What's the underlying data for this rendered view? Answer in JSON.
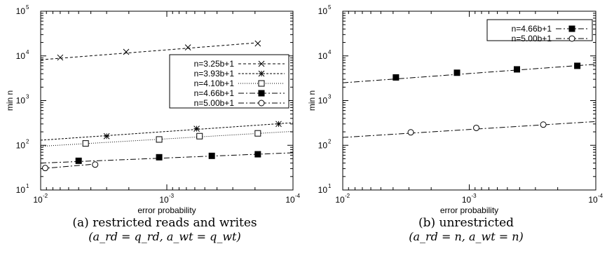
{
  "chart_data": [
    {
      "type": "line",
      "xlabel": "error probability",
      "ylabel": "min n",
      "xscale": "log",
      "yscale": "log",
      "xreversed": true,
      "xlim": [
        0.01,
        0.0001
      ],
      "ylim": [
        10,
        100000
      ],
      "xticks": [
        {
          "base": "10",
          "exp": "-2"
        },
        {
          "base": "10",
          "exp": "-3"
        },
        {
          "base": "10",
          "exp": "-4"
        }
      ],
      "yticks": [
        {
          "base": "10",
          "exp": "1"
        },
        {
          "base": "10",
          "exp": "2"
        },
        {
          "base": "10",
          "exp": "3"
        },
        {
          "base": "10",
          "exp": "4"
        },
        {
          "base": "10",
          "exp": "5"
        }
      ],
      "legend_position": "right",
      "caption_line1": "(a) restricted reads and writes",
      "caption_line2": "(a_rd = q_rd, a_wt = q_wt)",
      "series": [
        {
          "name": "n=3.25b+1",
          "marker": "x",
          "dash": "4,3",
          "line": {
            "x": [
              0.01,
              0.0002
            ],
            "y": [
              8200,
              19500
            ]
          },
          "points": {
            "x": [
              0.007,
              0.0021,
              0.00068,
              0.00019
            ],
            "y": [
              9200,
              12300,
              15500,
              19000
            ]
          }
        },
        {
          "name": "n=3.93b+1",
          "marker": "star",
          "dash": "3,2",
          "line": {
            "x": [
              0.01,
              0.0001
            ],
            "y": [
              130,
              320
            ]
          },
          "points": {
            "x": [
              0.003,
              0.00058,
              0.00013
            ],
            "y": [
              160,
              235,
              300
            ]
          }
        },
        {
          "name": "n=4.10b+1",
          "marker": "square-open",
          "dash": "1,2",
          "line": {
            "x": [
              0.01,
              0.0001
            ],
            "y": [
              95,
              205
            ]
          },
          "points": {
            "x": [
              0.0044,
              0.00115,
              0.00055,
              0.00019
            ],
            "y": [
              110,
              135,
              160,
              185
            ]
          }
        },
        {
          "name": "n=4.66b+1",
          "marker": "square-filled",
          "dash": "8,3,2,3",
          "line": {
            "x": [
              0.01,
              0.0001
            ],
            "y": [
              40,
              68
            ]
          },
          "points": {
            "x": [
              0.005,
              0.00115,
              0.00044,
              0.00019
            ],
            "y": [
              45,
              54,
              58,
              63
            ]
          }
        },
        {
          "name": "n=5.00b+1",
          "marker": "circle-open",
          "dash": "8,3,2,3",
          "line": {
            "x": [
              0.01,
              0.0037
            ],
            "y": [
              30,
              38
            ]
          },
          "points": {
            "x": [
              0.0092,
              0.0037
            ],
            "y": [
              31,
              37
            ]
          }
        }
      ]
    },
    {
      "type": "line",
      "xlabel": "error probability",
      "ylabel": "min n",
      "xscale": "log",
      "yscale": "log",
      "xreversed": true,
      "xlim": [
        0.01,
        0.0001
      ],
      "ylim": [
        10,
        100000
      ],
      "xticks": [
        {
          "base": "10",
          "exp": "-2"
        },
        {
          "base": "10",
          "exp": "-3"
        },
        {
          "base": "10",
          "exp": "-4"
        }
      ],
      "yticks": [
        {
          "base": "10",
          "exp": "1"
        },
        {
          "base": "10",
          "exp": "2"
        },
        {
          "base": "10",
          "exp": "3"
        },
        {
          "base": "10",
          "exp": "4"
        },
        {
          "base": "10",
          "exp": "5"
        }
      ],
      "legend_position": "top-right",
      "caption_line1": "(b) unrestricted",
      "caption_line2": "(a_rd = n, a_wt = n)",
      "series": [
        {
          "name": "n=4.66b+1",
          "marker": "square-filled",
          "dash": "8,3,2,3",
          "line": {
            "x": [
              0.01,
              0.0001
            ],
            "y": [
              2500,
              6500
            ]
          },
          "points": {
            "x": [
              0.0038,
              0.00125,
              0.00042,
              0.00014
            ],
            "y": [
              3300,
              4200,
              5000,
              6000
            ]
          }
        },
        {
          "name": "n=5.00b+1",
          "marker": "circle-open",
          "dash": "8,3,2,3",
          "line": {
            "x": [
              0.01,
              0.0001
            ],
            "y": [
              150,
              340
            ]
          },
          "points": {
            "x": [
              0.0029,
              0.00088,
              0.00026
            ],
            "y": [
              195,
              245,
              290
            ]
          }
        }
      ]
    }
  ]
}
